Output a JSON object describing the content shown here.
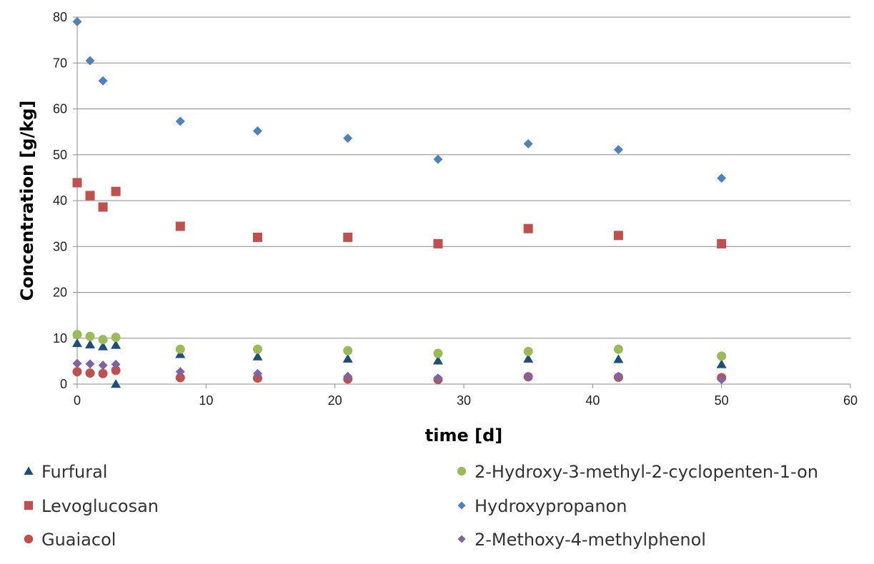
{
  "chart_data": {
    "type": "scatter",
    "title": "",
    "xlabel": "time [d]",
    "ylabel": "Concentration [g/kg]",
    "xlim": [
      0,
      60
    ],
    "ylim": [
      0,
      80
    ],
    "x_ticks": [
      "0",
      "10",
      "20",
      "30",
      "40",
      "50",
      "60"
    ],
    "y_ticks": [
      "0",
      "10",
      "20",
      "30",
      "40",
      "50",
      "60",
      "70",
      "80"
    ],
    "grid": "horizontal",
    "legend_position": "bottom",
    "series": [
      {
        "name": "Furfural",
        "marker": "triangle",
        "color": "#1F4E79",
        "x": [
          0,
          1,
          2,
          3,
          3,
          8,
          14,
          21,
          28,
          35,
          42,
          50
        ],
        "y": [
          8.9,
          8.6,
          8.2,
          8.5,
          0,
          6.5,
          6.0,
          5.5,
          5.1,
          5.5,
          5.4,
          4.3
        ]
      },
      {
        "name": "2-Hydroxy-3-methyl-2-cyclopenten-1-on",
        "marker": "circle",
        "color": "#9BBB59",
        "x": [
          0,
          1,
          2,
          3,
          8,
          14,
          21,
          28,
          35,
          42,
          50
        ],
        "y": [
          10.8,
          10.4,
          9.7,
          10.2,
          7.6,
          7.6,
          7.3,
          6.7,
          7.1,
          7.6,
          6.1
        ]
      },
      {
        "name": "Levoglucosan",
        "marker": "square",
        "color": "#C0504D",
        "x": [
          0,
          1,
          2,
          3,
          8,
          14,
          21,
          28,
          35,
          42,
          50
        ],
        "y": [
          43.9,
          41.1,
          38.6,
          42.0,
          34.4,
          32.0,
          32.0,
          30.6,
          33.9,
          32.4,
          30.6
        ]
      },
      {
        "name": "Hydroxypropanon",
        "marker": "diamond",
        "color": "#4F81BD",
        "x": [
          0,
          1,
          2,
          8,
          14,
          21,
          28,
          35,
          42,
          50
        ],
        "y": [
          79.0,
          70.5,
          66.1,
          57.3,
          55.2,
          53.6,
          49.0,
          52.4,
          51.1,
          44.9
        ]
      },
      {
        "name": "Guaiacol",
        "marker": "circle",
        "color": "#C0504D",
        "x": [
          0,
          1,
          2,
          3,
          8,
          14,
          21,
          28,
          35,
          42,
          50
        ],
        "y": [
          2.7,
          2.4,
          2.3,
          3.0,
          1.4,
          1.3,
          1.1,
          1.0,
          1.6,
          1.5,
          1.4
        ]
      },
      {
        "name": "2-Methoxy-4-methylphenol",
        "marker": "diamond",
        "color": "#8064A2",
        "x": [
          0,
          1,
          2,
          3,
          8,
          14,
          21,
          28,
          35,
          42,
          50
        ],
        "y": [
          4.5,
          4.4,
          4.1,
          4.3,
          2.7,
          2.3,
          1.7,
          1.3,
          1.6,
          1.7,
          1.0
        ]
      }
    ]
  }
}
